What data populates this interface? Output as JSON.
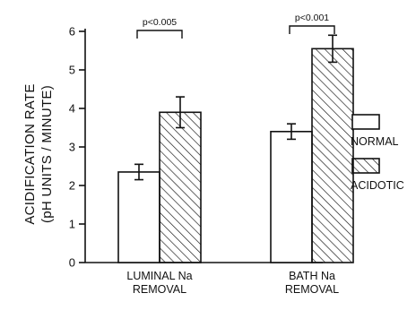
{
  "chart_data": {
    "type": "bar",
    "title": "",
    "ylabel_line1": "ACIDIFICATION RATE",
    "ylabel_line2": "(pH UNITS / MINUTE)",
    "xlabel": "",
    "ylim": [
      0,
      6
    ],
    "yticks": [
      "0",
      "1",
      "2",
      "3",
      "4",
      "5",
      "6"
    ],
    "categories": [
      {
        "line1": "LUMINAL Na",
        "line2": "REMOVAL"
      },
      {
        "line1": "BATH Na",
        "line2": "REMOVAL"
      }
    ],
    "series": [
      {
        "name": "NORMAL",
        "pattern": "open",
        "values": [
          2.35,
          3.4
        ],
        "errors": [
          0.2,
          0.2
        ]
      },
      {
        "name": "ACIDOTIC",
        "pattern": "hatched",
        "values": [
          3.9,
          5.55
        ],
        "errors": [
          0.4,
          0.35
        ]
      }
    ],
    "significance": [
      "p<0.005",
      "p<0.001"
    ],
    "legend_position": "right",
    "grid": false
  }
}
